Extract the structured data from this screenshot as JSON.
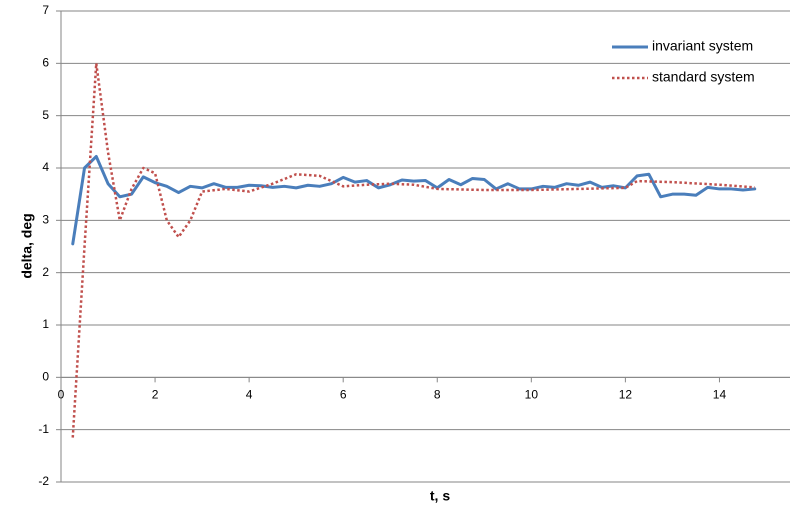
{
  "chart_data": {
    "type": "line",
    "x_label": "t, s",
    "y_label": "delta, deg",
    "xlim": [
      0,
      15.5
    ],
    "xticks": [
      0,
      2,
      4,
      6,
      8,
      10,
      12,
      14
    ],
    "ylim": [
      -2,
      7
    ],
    "yticks": [
      -2,
      -1,
      0,
      1,
      2,
      3,
      4,
      5,
      6,
      7
    ],
    "grid": true,
    "legend": "upper right",
    "series": [
      {
        "name": "invariant system",
        "color": "#4a7ebb",
        "dash": "solid",
        "x": [
          0.25,
          0.5,
          0.75,
          1.0,
          1.25,
          1.5,
          1.75,
          2.0,
          2.25,
          2.5,
          2.75,
          3.0,
          3.25,
          3.5,
          3.75,
          4.0,
          4.25,
          4.5,
          4.75,
          5.0,
          5.25,
          5.5,
          5.75,
          6.0,
          6.25,
          6.5,
          6.75,
          7.0,
          7.25,
          7.5,
          7.75,
          8.0,
          8.25,
          8.5,
          8.75,
          9.0,
          9.25,
          9.5,
          9.75,
          10.0,
          10.25,
          10.5,
          10.75,
          11.0,
          11.25,
          11.5,
          11.75,
          12.0,
          12.25,
          12.5,
          12.75,
          13.0,
          13.25,
          13.5,
          13.75,
          14.0,
          14.25,
          14.5,
          14.75
        ],
        "values": [
          2.55,
          4.0,
          4.22,
          3.7,
          3.45,
          3.5,
          3.83,
          3.72,
          3.65,
          3.53,
          3.65,
          3.62,
          3.7,
          3.63,
          3.63,
          3.67,
          3.66,
          3.63,
          3.65,
          3.62,
          3.67,
          3.65,
          3.7,
          3.82,
          3.73,
          3.76,
          3.62,
          3.68,
          3.77,
          3.75,
          3.76,
          3.62,
          3.78,
          3.68,
          3.8,
          3.78,
          3.6,
          3.7,
          3.6,
          3.6,
          3.65,
          3.63,
          3.7,
          3.67,
          3.73,
          3.63,
          3.66,
          3.62,
          3.85,
          3.88,
          3.45,
          3.5,
          3.5,
          3.48,
          3.63,
          3.6,
          3.6,
          3.58,
          3.6
        ]
      },
      {
        "name": "standard system",
        "color": "#c0504d",
        "dash": "dotted",
        "x": [
          0.25,
          0.5,
          0.75,
          1.0,
          1.25,
          1.5,
          1.75,
          2.0,
          2.25,
          2.5,
          2.75,
          3.0,
          3.5,
          4.0,
          4.5,
          5.0,
          5.5,
          6.0,
          6.5,
          7.0,
          7.5,
          8.0,
          9.0,
          10.0,
          11.0,
          12.0,
          12.25,
          13.0,
          14.0,
          14.75
        ],
        "values": [
          -1.15,
          2.5,
          6.0,
          4.3,
          3.0,
          3.6,
          4.0,
          3.9,
          3.0,
          2.68,
          3.0,
          3.55,
          3.6,
          3.55,
          3.7,
          3.88,
          3.85,
          3.65,
          3.68,
          3.7,
          3.68,
          3.6,
          3.58,
          3.58,
          3.6,
          3.62,
          3.75,
          3.73,
          3.68,
          3.63
        ]
      }
    ]
  }
}
